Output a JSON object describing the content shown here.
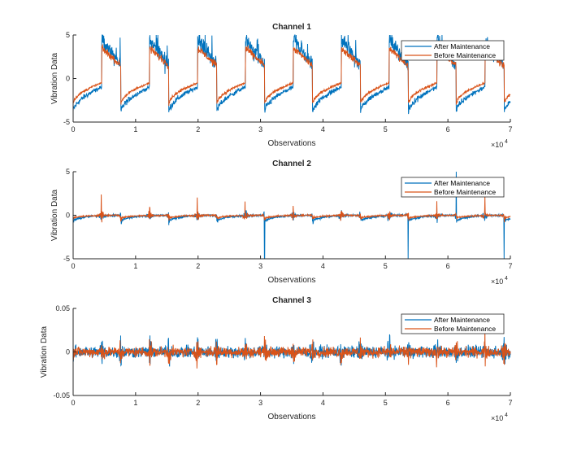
{
  "chart_data": [
    {
      "type": "line",
      "title": "Channel 1",
      "xlabel": "Observations",
      "ylabel": "Vibration Data",
      "x_exponent": "×10",
      "x_exponent_power": "4",
      "xlim": [
        0,
        70000
      ],
      "ylim": [
        -5,
        5
      ],
      "xticks": [
        "0",
        "1",
        "2",
        "3",
        "4",
        "5",
        "6",
        "7"
      ],
      "yticks": [
        "-5",
        "0",
        "5"
      ],
      "legend": {
        "placement": "top-right",
        "entries": [
          "After Maintenance",
          "Before Maintenance"
        ]
      },
      "cycle_period": 7670,
      "series": [
        {
          "name": "After Maintenance",
          "color": "#0072BD",
          "low_range": [
            -4,
            -1
          ],
          "high_range": [
            4.5,
            1.5
          ],
          "noise": 0.5
        },
        {
          "name": "Before Maintenance",
          "color": "#D95319",
          "low_range": [
            -3,
            -0.5
          ],
          "high_range": [
            3.5,
            1.5
          ],
          "noise": 0.25
        }
      ]
    },
    {
      "type": "line",
      "title": "Channel 2",
      "xlabel": "Observations",
      "ylabel": "Vibration Data",
      "x_exponent": "×10",
      "x_exponent_power": "4",
      "xlim": [
        0,
        70000
      ],
      "ylim": [
        -5,
        5
      ],
      "xticks": [
        "0",
        "1",
        "2",
        "3",
        "4",
        "5",
        "6",
        "7"
      ],
      "yticks": [
        "-5",
        "0",
        "5"
      ],
      "legend": {
        "placement": "top-right",
        "entries": [
          "After Maintenance",
          "Before Maintenance"
        ]
      },
      "cycle_period": 7670,
      "series": [
        {
          "name": "After Maintenance",
          "color": "#0072BD",
          "spike": 5,
          "noise": 0.15
        },
        {
          "name": "Before Maintenance",
          "color": "#D95319",
          "spike": 2.5,
          "noise": 0.1
        }
      ]
    },
    {
      "type": "line",
      "title": "Channel 3",
      "xlabel": "Observations",
      "ylabel": "Vibration Data",
      "x_exponent": "×10",
      "x_exponent_power": "4",
      "xlim": [
        0,
        70000
      ],
      "ylim": [
        -0.05,
        0.05
      ],
      "xticks": [
        "0",
        "1",
        "2",
        "3",
        "4",
        "5",
        "6",
        "7"
      ],
      "yticks": [
        "-0.05",
        "0",
        "0.05"
      ],
      "legend": {
        "placement": "top-right",
        "entries": [
          "After Maintenance",
          "Before Maintenance"
        ]
      },
      "cycle_period": 7670,
      "series": [
        {
          "name": "After Maintenance",
          "color": "#0072BD",
          "burst": 0.035,
          "noise": 0.008
        },
        {
          "name": "Before Maintenance",
          "color": "#D95319",
          "burst": 0.03,
          "noise": 0.007
        }
      ]
    }
  ]
}
